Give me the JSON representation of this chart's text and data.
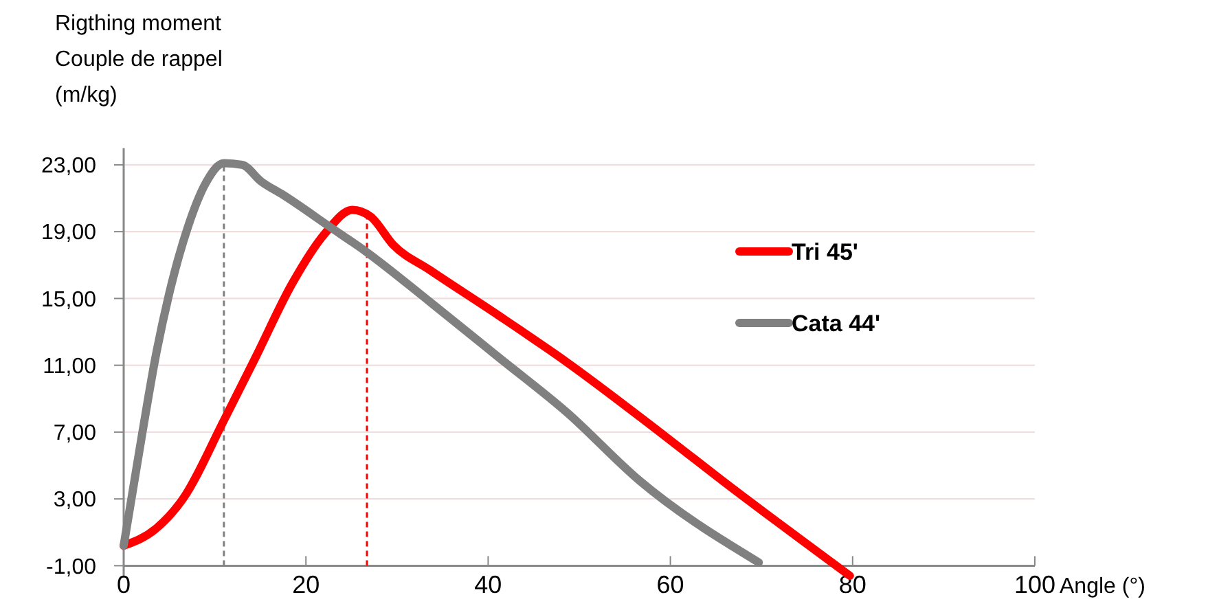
{
  "chart_data": {
    "type": "line",
    "ylabel": "Rigthing moment\nCouple de rappel\n(m/kg)",
    "xlabel": "Angle (°)",
    "xlim": [
      0,
      100
    ],
    "xticks": [
      0,
      20,
      40,
      60,
      80,
      100
    ],
    "ylim": [
      -1.7,
      24
    ],
    "yticks": [
      {
        "value": -1,
        "label": "-1,00"
      },
      {
        "value": 3,
        "label": "3,00"
      },
      {
        "value": 7,
        "label": "7,00"
      },
      {
        "value": 11,
        "label": "11,00"
      },
      {
        "value": 15,
        "label": "15,00"
      },
      {
        "value": 19,
        "label": "19,00"
      },
      {
        "value": 23,
        "label": "23,00"
      }
    ],
    "grid": "y",
    "legend": "right",
    "line_style": "solid",
    "series": [
      {
        "name": "Tri 45'",
        "color": "#ff0000",
        "x": [
          0,
          3.5,
          6.5,
          11,
          14.5,
          18.5,
          22.1,
          25.1,
          27.1,
          29.6,
          33.6,
          41.1,
          48.6,
          58.6,
          65.7,
          79.7
        ],
        "values": [
          0.2,
          1.2,
          3,
          7.7,
          11.5,
          15.9,
          18.9,
          20.3,
          19.9,
          18.2,
          16.7,
          14,
          11.2,
          7.1,
          4.1,
          -1.6
        ]
      },
      {
        "name": "Cata 44'",
        "color": "#808080",
        "x": [
          0,
          2,
          3.5,
          5,
          7,
          9,
          11,
          13,
          15.1,
          17.5,
          22.6,
          26.6,
          33.6,
          41.1,
          48.6,
          56.6,
          69.7
        ],
        "values": [
          0.2,
          6.8,
          11.5,
          15.3,
          19.2,
          21.9,
          23.1,
          23,
          22,
          21.2,
          19.3,
          17.8,
          14.8,
          11.5,
          8.2,
          4.1,
          -0.8
        ]
      }
    ],
    "ref_lines": [
      {
        "axis": "x",
        "value": 11,
        "color": "#808080",
        "line_style": "dashed"
      },
      {
        "axis": "x",
        "value": 26.7,
        "color": "#ff0000",
        "line_style": "dashed"
      }
    ]
  }
}
